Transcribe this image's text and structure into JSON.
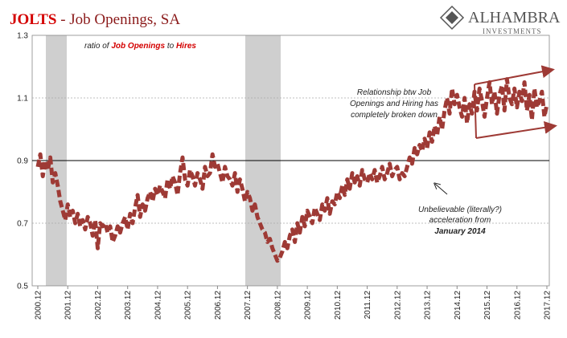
{
  "chart_data": {
    "type": "line",
    "title": [
      "JOLTS",
      "- Job Openings, SA"
    ],
    "subtitle": [
      "ratio of",
      "Job Openings",
      "to",
      "Hires"
    ],
    "logo": [
      "ALHAMBRA",
      "INVESTMENTS"
    ],
    "annotations": [
      [
        "Relationship btw Job",
        "Openings and Hiring has",
        "completely broken down"
      ],
      [
        "Unbelievable (literally?)",
        "acceleration from",
        "January 2014"
      ]
    ],
    "categories": [
      "2000.12",
      null,
      null,
      null,
      null,
      null,
      null,
      null,
      null,
      null,
      null,
      null,
      "2001.12",
      null,
      null,
      null,
      null,
      null,
      null,
      null,
      null,
      null,
      null,
      null,
      "2002.12",
      null,
      null,
      null,
      null,
      null,
      null,
      null,
      null,
      null,
      null,
      null,
      "2003.12",
      null,
      null,
      null,
      null,
      null,
      null,
      null,
      null,
      null,
      null,
      null,
      "2004.12",
      null,
      null,
      null,
      null,
      null,
      null,
      null,
      null,
      null,
      null,
      null,
      "2005.12",
      null,
      null,
      null,
      null,
      null,
      null,
      null,
      null,
      null,
      null,
      null,
      "2006.12",
      null,
      null,
      null,
      null,
      null,
      null,
      null,
      null,
      null,
      null,
      null,
      "2007.12",
      null,
      null,
      null,
      null,
      null,
      null,
      null,
      null,
      null,
      null,
      null,
      "2008.12",
      null,
      null,
      null,
      null,
      null,
      null,
      null,
      null,
      null,
      null,
      null,
      "2009.12",
      null,
      null,
      null,
      null,
      null,
      null,
      null,
      null,
      null,
      null,
      null,
      "2010.12",
      null,
      null,
      null,
      null,
      null,
      null,
      null,
      null,
      null,
      null,
      null,
      "2011.12",
      null,
      null,
      null,
      null,
      null,
      null,
      null,
      null,
      null,
      null,
      null,
      "2012.12",
      null,
      null,
      null,
      null,
      null,
      null,
      null,
      null,
      null,
      null,
      null,
      "2013.12",
      null,
      null,
      null,
      null,
      null,
      null,
      null,
      null,
      null,
      null,
      null,
      "2014.12",
      null,
      null,
      null,
      null,
      null,
      null,
      null,
      null,
      null,
      null,
      null,
      "2015.12",
      null,
      null,
      null,
      null,
      null,
      null,
      null,
      null,
      null,
      null,
      null,
      "2016.12",
      null,
      null,
      null,
      null,
      null,
      null,
      null,
      null,
      null,
      null,
      null,
      "2017.12"
    ],
    "values": [
      0.88,
      0.92,
      0.85,
      0.9,
      0.87,
      0.91,
      0.83,
      0.86,
      0.82,
      0.77,
      0.74,
      0.71,
      0.76,
      0.72,
      0.74,
      0.7,
      0.73,
      0.69,
      0.71,
      0.68,
      0.72,
      0.7,
      0.66,
      0.71,
      0.62,
      0.7,
      0.69,
      0.7,
      0.67,
      0.69,
      0.64,
      0.66,
      0.69,
      0.67,
      0.7,
      0.72,
      0.68,
      0.73,
      0.7,
      0.75,
      0.79,
      0.72,
      0.76,
      0.74,
      0.78,
      0.8,
      0.77,
      0.81,
      0.79,
      0.82,
      0.8,
      0.78,
      0.84,
      0.81,
      0.85,
      0.83,
      0.79,
      0.86,
      0.91,
      0.84,
      0.82,
      0.87,
      0.85,
      0.82,
      0.86,
      0.84,
      0.81,
      0.88,
      0.85,
      0.86,
      0.92,
      0.88,
      0.89,
      0.86,
      0.83,
      0.88,
      0.85,
      0.84,
      0.82,
      0.86,
      0.8,
      0.84,
      0.81,
      0.77,
      0.8,
      0.78,
      0.74,
      0.76,
      0.72,
      0.7,
      0.68,
      0.67,
      0.64,
      0.65,
      0.62,
      0.6,
      0.58,
      0.59,
      0.61,
      0.64,
      0.62,
      0.66,
      0.68,
      0.64,
      0.7,
      0.67,
      0.72,
      0.69,
      0.74,
      0.72,
      0.7,
      0.75,
      0.73,
      0.71,
      0.76,
      0.74,
      0.78,
      0.73,
      0.77,
      0.76,
      0.8,
      0.78,
      0.82,
      0.79,
      0.84,
      0.81,
      0.86,
      0.83,
      0.85,
      0.82,
      0.87,
      0.84,
      0.83,
      0.86,
      0.84,
      0.87,
      0.83,
      0.85,
      0.88,
      0.84,
      0.86,
      0.89,
      0.85,
      0.87,
      0.88,
      0.84,
      0.86,
      0.85,
      0.88,
      0.91,
      0.89,
      0.94,
      0.92,
      0.95,
      0.93,
      0.97,
      0.94,
      0.99,
      0.96,
      1.01,
      0.98,
      1.04,
      1.0,
      1.06,
      1.1,
      1.05,
      1.13,
      1.08,
      1.11,
      1.07,
      1.04,
      1.1,
      1.02,
      1.08,
      1.05,
      1.12,
      1.06,
      1.13,
      1.09,
      1.04,
      1.1,
      1.15,
      1.08,
      1.12,
      1.05,
      1.11,
      1.14,
      1.06,
      1.16,
      1.1,
      1.08,
      1.13,
      1.07,
      1.12,
      1.09,
      1.15,
      1.06,
      1.11,
      1.03,
      1.13,
      1.07,
      1.09,
      1.12,
      1.04,
      1.08
    ],
    "color": "#9e3a35",
    "ylim": [
      0.5,
      1.3
    ],
    "yticks": [
      0.5,
      0.7,
      0.9,
      1.1,
      1.3
    ],
    "grid": true,
    "reference_line": 0.9
  }
}
